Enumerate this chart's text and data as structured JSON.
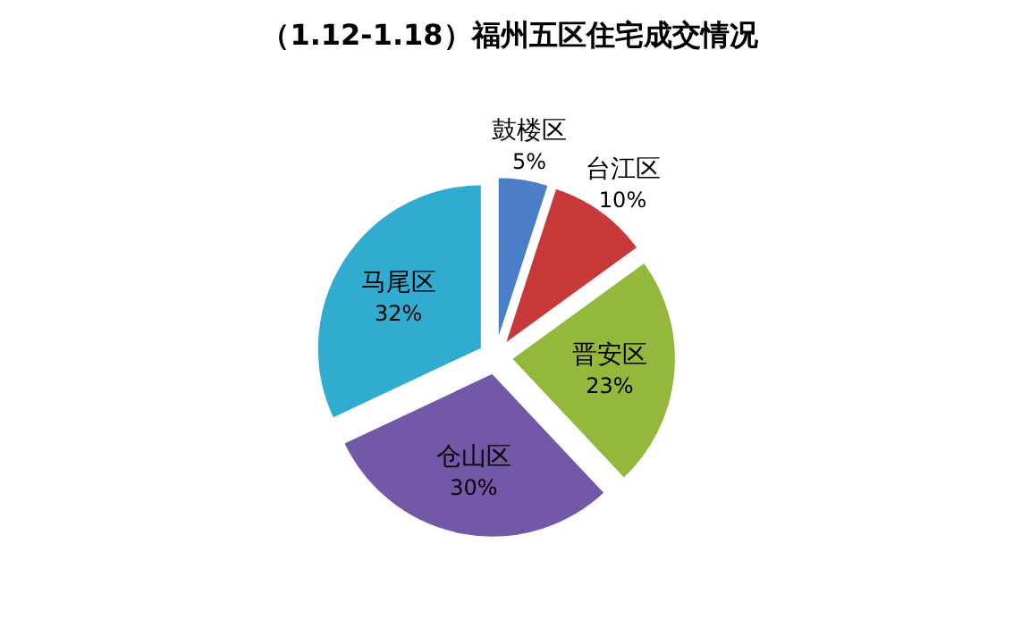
{
  "chart_data": {
    "type": "pie",
    "title": "（1.12-1.18）福州五区住宅成交情况",
    "categories": [
      "鼓楼区",
      "台江区",
      "晋安区",
      "仓山区",
      "马尾区"
    ],
    "values": [
      5,
      10,
      23,
      30,
      32
    ],
    "value_labels": [
      "5%",
      "10%",
      "23%",
      "30%",
      "32%"
    ],
    "colors": [
      "#4a7fc8",
      "#c83a3a",
      "#93b83c",
      "#7458a8",
      "#31acd0"
    ],
    "legend": false
  }
}
